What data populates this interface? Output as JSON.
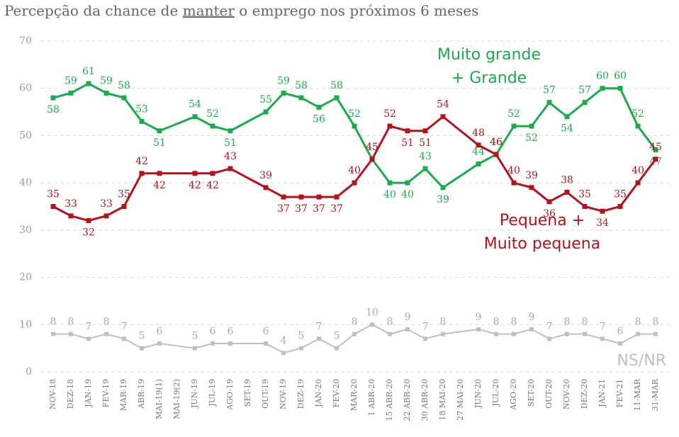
{
  "chart_data": {
    "type": "line",
    "title": [
      "Percepção da chance de ",
      "manter",
      " o emprego nos próximos 6 meses"
    ],
    "categories": [
      "NOV-18",
      "DEZ-18",
      "JAN-19",
      "FEV-19",
      "MAR-19",
      "ABR-19",
      "MAI-19(1)",
      "MAI-19(2)",
      "JUN-19",
      "JUL-19",
      "AGO-19",
      "SET-19",
      "OUT-19",
      "NOV-19",
      "DEZ-19",
      "JAN-20",
      "FEV-20",
      "MAR-20",
      "1 ABR-20",
      "15 ABR-20",
      "22 ABR-20",
      "30 ABR-20",
      "18 MAI-20",
      "27 MAI-20",
      "JUN-20",
      "JUL-20",
      "AGO-20",
      "SET-20",
      "OUT-20",
      "NOV-20",
      "DEZ-20",
      "JAN-21",
      "FEV-21",
      "11-MAR",
      "31-MAR"
    ],
    "series": [
      {
        "name": [
          "Muito grande",
          "+ Grande"
        ],
        "color": "#1aab4b",
        "values": [
          58,
          59,
          61,
          59,
          58,
          53,
          51,
          null,
          54,
          52,
          51,
          null,
          55,
          59,
          58,
          56,
          58,
          52,
          45,
          40,
          40,
          43,
          39,
          null,
          44,
          46,
          52,
          52,
          57,
          54,
          57,
          60,
          60,
          52,
          47
        ]
      },
      {
        "name": [
          "Pequena +",
          "Muito pequena"
        ],
        "color": "#b5121b",
        "values": [
          35,
          33,
          32,
          33,
          35,
          42,
          42,
          null,
          42,
          42,
          43,
          null,
          39,
          37,
          37,
          37,
          37,
          40,
          45,
          52,
          51,
          51,
          54,
          null,
          48,
          46,
          40,
          39,
          36,
          38,
          35,
          34,
          35,
          40,
          45
        ]
      },
      {
        "name": [
          "NS/NR"
        ],
        "color": "#bfbfbf",
        "values": [
          8,
          8,
          7,
          8,
          7,
          5,
          6,
          null,
          5,
          6,
          6,
          null,
          6,
          4,
          5,
          7,
          5,
          8,
          10,
          8,
          9,
          7,
          8,
          null,
          9,
          8,
          8,
          9,
          7,
          8,
          8,
          7,
          6,
          8,
          8
        ]
      }
    ],
    "ylim": [
      0,
      70
    ],
    "yticks": [
      0,
      10,
      20,
      30,
      40,
      50,
      60,
      70
    ],
    "grid": true
  }
}
